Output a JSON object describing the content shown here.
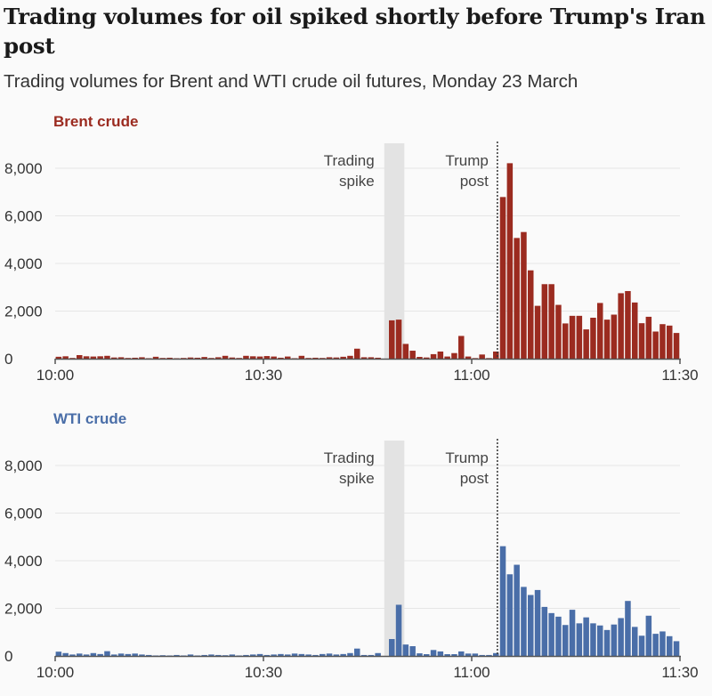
{
  "title": "Trading volumes for oil spiked shortly before Trump's Iran post",
  "subtitle": "Trading volumes for Brent and WTI crude oil futures, Monday 23 March",
  "chart_data": [
    {
      "type": "bar",
      "series_label": "Brent crude",
      "color": "#9b2b20",
      "x_start": "10:00",
      "x_interval_minutes": 1,
      "xticks": [
        "10:00",
        "10:30",
        "11:00",
        "11:30"
      ],
      "yticks": [
        "0",
        "2,000",
        "4,000",
        "6,000",
        "8,000"
      ],
      "ylim": [
        0,
        8000
      ],
      "grid": true,
      "annotations": {
        "shade_label": [
          "Trading",
          "spike"
        ],
        "shade_range": [
          "10:47",
          "10:50"
        ],
        "line_label": [
          "Trump",
          "post"
        ],
        "line_at": "11:04"
      },
      "values": [
        80,
        100,
        30,
        150,
        100,
        90,
        100,
        120,
        50,
        60,
        30,
        40,
        60,
        20,
        80,
        30,
        40,
        20,
        30,
        50,
        40,
        70,
        30,
        60,
        120,
        50,
        30,
        120,
        100,
        90,
        110,
        90,
        40,
        90,
        20,
        120,
        30,
        40,
        30,
        60,
        50,
        80,
        120,
        420,
        60,
        60,
        40,
        0,
        1610,
        1640,
        620,
        335,
        75,
        50,
        190,
        300,
        90,
        235,
        955,
        90,
        25,
        175,
        25,
        300,
        6790,
        8210,
        5070,
        5320,
        3710,
        2220,
        3130,
        3130,
        2260,
        1480,
        1800,
        1800,
        1230,
        1720,
        2340,
        1640,
        1850,
        2750,
        2840,
        2360,
        1490,
        1760,
        1140,
        1450,
        1390,
        1080
      ]
    },
    {
      "type": "bar",
      "series_label": "WTI crude",
      "color": "#4a6ea8",
      "x_start": "10:00",
      "x_interval_minutes": 1,
      "xticks": [
        "10:00",
        "10:30",
        "11:00",
        "11:30"
      ],
      "yticks": [
        "0",
        "2,000",
        "4,000",
        "6,000",
        "8,000"
      ],
      "ylim": [
        0,
        8000
      ],
      "grid": true,
      "annotations": {
        "shade_label": [
          "Trading",
          "spike"
        ],
        "shade_range": [
          "10:47",
          "10:50"
        ],
        "line_label": [
          "Trump",
          "post"
        ],
        "line_at": "11:04"
      },
      "values": [
        180,
        120,
        60,
        100,
        60,
        120,
        80,
        200,
        60,
        100,
        80,
        100,
        60,
        40,
        20,
        30,
        20,
        40,
        20,
        60,
        20,
        40,
        60,
        40,
        30,
        60,
        20,
        40,
        60,
        80,
        40,
        60,
        80,
        60,
        100,
        80,
        60,
        40,
        80,
        100,
        60,
        80,
        120,
        310,
        40,
        40,
        120,
        0,
        710,
        2150,
        480,
        410,
        110,
        75,
        250,
        190,
        75,
        75,
        190,
        100,
        100,
        40,
        40,
        120,
        4610,
        3430,
        3830,
        2900,
        2560,
        2770,
        2060,
        1800,
        1650,
        1300,
        1940,
        1370,
        1620,
        1370,
        1280,
        1090,
        1320,
        1590,
        2310,
        1220,
        850,
        1690,
        930,
        1030,
        830,
        620
      ]
    }
  ]
}
